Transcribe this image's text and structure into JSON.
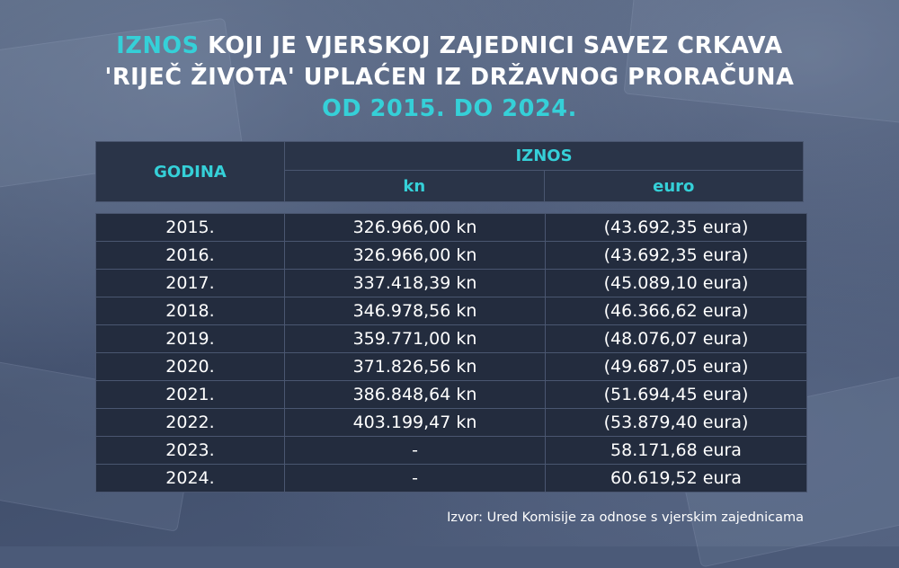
{
  "title": {
    "part1_accent": "IZNOS",
    "part1_rest": " KOJI JE VJERSKOJ ZAJEDNICI SAVEZ CRKAVA",
    "line2": "'RIJEČ ŽIVOTA' UPLAĆEN IZ DRŽAVNOG PRORAČUNA",
    "line3": "OD 2015. DO 2024."
  },
  "table": {
    "header_year": "GODINA",
    "header_amount": "IZNOS",
    "header_kn": "kn",
    "header_euro": "euro",
    "rows": [
      {
        "year": "2015.",
        "kn": "326.966,00 kn",
        "euro": "(43.692,35 eura)"
      },
      {
        "year": "2016.",
        "kn": "326.966,00 kn",
        "euro": "(43.692,35 eura)"
      },
      {
        "year": "2017.",
        "kn": "337.418,39 kn",
        "euro": "(45.089,10 eura)"
      },
      {
        "year": "2018.",
        "kn": "346.978,56 kn",
        "euro": "(46.366,62 eura)"
      },
      {
        "year": "2019.",
        "kn": "359.771,00 kn",
        "euro": "(48.076,07 eura)"
      },
      {
        "year": "2020.",
        "kn": "371.826,56 kn",
        "euro": "(49.687,05 eura)"
      },
      {
        "year": "2021.",
        "kn": "386.848,64 kn",
        "euro": "(51.694,45 eura)"
      },
      {
        "year": "2022.",
        "kn": "403.199,47 kn",
        "euro": "(53.879,40 eura)"
      },
      {
        "year": "2023.",
        "kn": "-",
        "euro": "58.171,68 eura"
      },
      {
        "year": "2024.",
        "kn": "-",
        "euro": "60.619,52 eura"
      }
    ]
  },
  "source": "Izvor: Ured Komisije za odnose s vjerskim zajednicama",
  "colors": {
    "accent": "#35d0d8",
    "header_bg": "#2a3448",
    "row_bg": "#232c3e",
    "text": "#ffffff"
  }
}
